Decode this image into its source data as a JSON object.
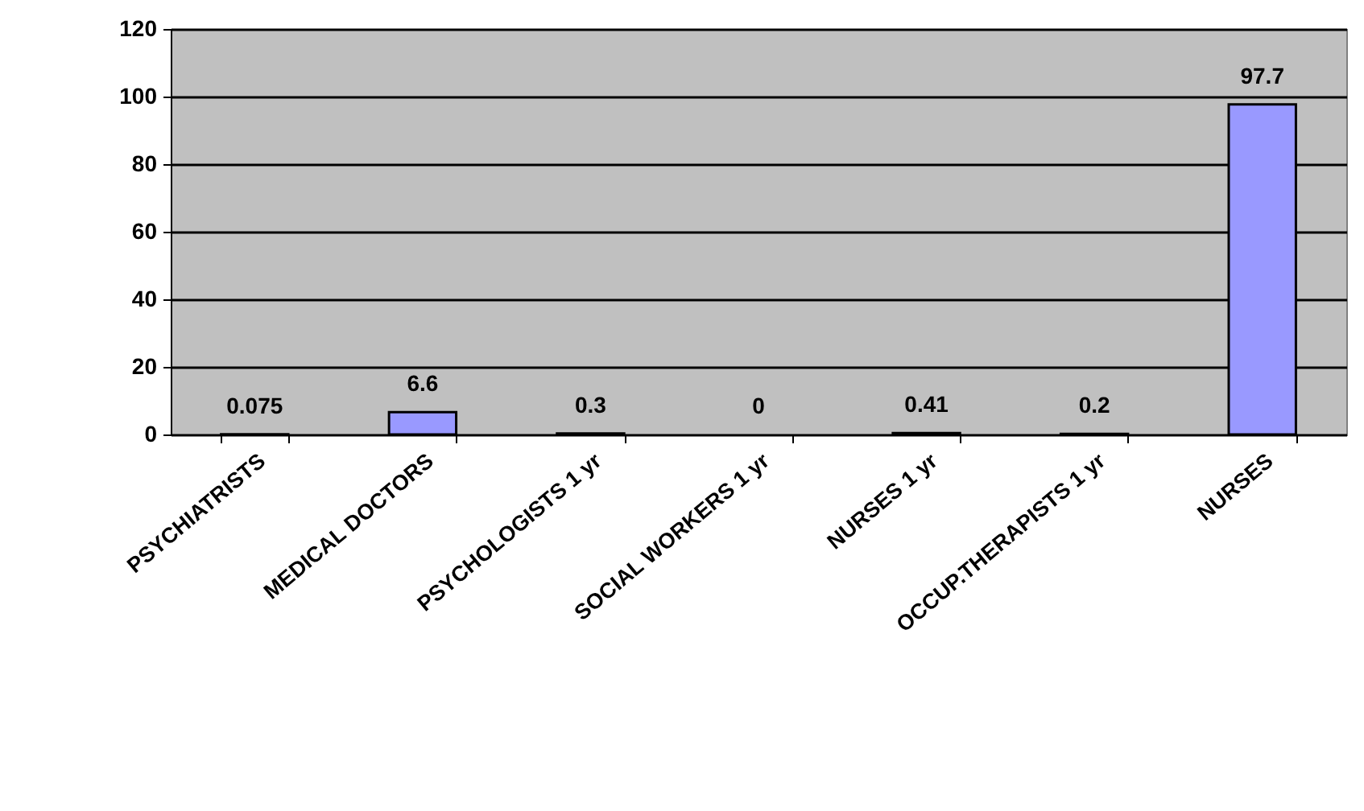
{
  "chart_data": {
    "type": "bar",
    "categories": [
      "PSYCHIATRISTS",
      "MEDICAL DOCTORS",
      "PSYCHOLOGISTS 1 yr",
      "SOCIAL WORKERS 1 yr",
      "NURSES 1  yr",
      "OCCUP.THERAPISTS 1 yr",
      "NURSES"
    ],
    "values": [
      0.075,
      6.6,
      0.3,
      0,
      0.41,
      0.2,
      97.7
    ],
    "color": "#9999ff",
    "ylim": [
      0,
      120
    ],
    "yticks": [
      0,
      20,
      40,
      60,
      80,
      100,
      120
    ],
    "grid": "y",
    "data_labels": true
  }
}
